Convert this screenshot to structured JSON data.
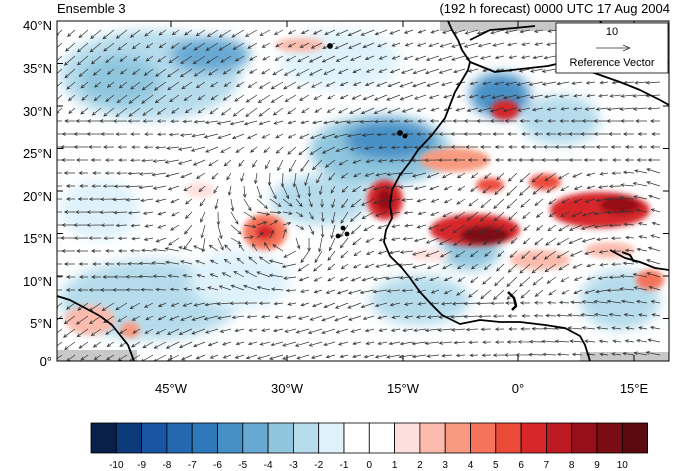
{
  "header": {
    "left_title": "Ensemble 3",
    "right_title": "(192 h forecast) 0000 UTC 17 Aug 2004"
  },
  "reference_vector": {
    "magnitude_label": "10",
    "caption": "Reference Vector"
  },
  "axes": {
    "lat_ticks": [
      "40°N",
      "35°N",
      "30°N",
      "25°N",
      "20°N",
      "15°N",
      "10°N",
      "5°N",
      "0°"
    ],
    "lon_ticks": [
      "45°W",
      "30°W",
      "15°W",
      "0°",
      "15°E"
    ]
  },
  "colorbar": {
    "labels": [
      "-10",
      "-9",
      "-8",
      "-7",
      "-6",
      "-5",
      "-4",
      "-3",
      "-2",
      "-1",
      "0",
      "1",
      "2",
      "3",
      "4",
      "5",
      "6",
      "7",
      "8",
      "9",
      "10"
    ],
    "colors": [
      "#08204a",
      "#0c3a7a",
      "#1a55a3",
      "#2568b0",
      "#2f78ba",
      "#4690c6",
      "#67a9d3",
      "#8fc6de",
      "#b6dcec",
      "#dff2fb",
      "#ffffff",
      "#ffffff",
      "#fde0dd",
      "#fbbcae",
      "#f89a80",
      "#f4735a",
      "#ec4b3a",
      "#d6282a",
      "#bb1a22",
      "#961019",
      "#7a0d14",
      "#5b0a0f"
    ]
  },
  "colors": {
    "land_outline": "#000000",
    "missing_gray": "#c8c8c8",
    "arrow": "#333333"
  }
}
